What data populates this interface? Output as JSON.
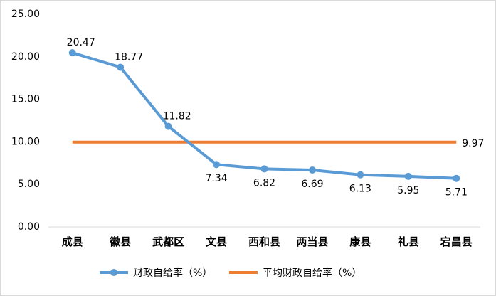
{
  "chart_data": {
    "type": "line",
    "categories": [
      "成县",
      "徽县",
      "武都区",
      "文县",
      "西和县",
      "两当县",
      "康县",
      "礼县",
      "宕昌县"
    ],
    "series": [
      {
        "name": "财政自给率（%）",
        "color": "#5b9bd5",
        "markers": true,
        "data_labels": "all",
        "values": [
          20.47,
          18.77,
          11.82,
          7.34,
          6.82,
          6.69,
          6.13,
          5.95,
          5.71
        ]
      },
      {
        "name": "平均财政自给率（%）",
        "color": "#ed7d31",
        "markers": false,
        "data_labels": "last",
        "values": [
          9.97,
          9.97,
          9.97,
          9.97,
          9.97,
          9.97,
          9.97,
          9.97,
          9.97
        ]
      }
    ],
    "ylim": [
      0,
      25
    ],
    "yticks": [
      {
        "value": 0,
        "label": "0.00"
      },
      {
        "value": 5,
        "label": "5.00"
      },
      {
        "value": 10,
        "label": "10.00"
      },
      {
        "value": 15,
        "label": "15.00"
      },
      {
        "value": 20,
        "label": "20.00"
      },
      {
        "value": 25,
        "label": "25.00"
      }
    ],
    "grid": false,
    "legend": "bottom"
  }
}
